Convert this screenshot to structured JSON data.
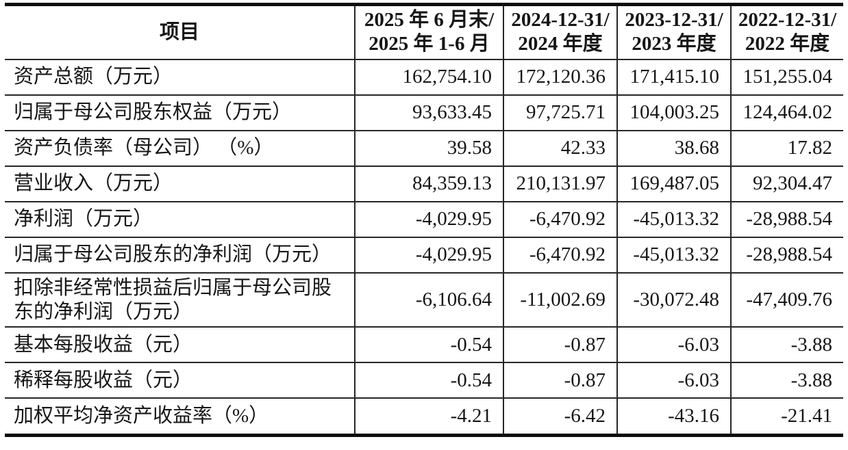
{
  "colors": {
    "background": "#ffffff",
    "text": "#161616",
    "grid_line": "#262626",
    "double_rule": "#0c0c0c"
  },
  "table": {
    "header": {
      "item_label": "项目",
      "columns": [
        {
          "line1": "2025 年 6 月末/",
          "line2": "2025 年 1-6 月"
        },
        {
          "line1": "2024-12-31/",
          "line2": "2024 年度"
        },
        {
          "line1": "2023-12-31/",
          "line2": "2023 年度"
        },
        {
          "line1": "2022-12-31/",
          "line2": "2022 年度"
        }
      ]
    },
    "rows": [
      {
        "label": "资产总额（万元）",
        "values": [
          "162,754.10",
          "172,120.36",
          "171,415.10",
          "151,255.04"
        ]
      },
      {
        "label": "归属于母公司股东权益（万元）",
        "values": [
          "93,633.45",
          "97,725.71",
          "104,003.25",
          "124,464.02"
        ]
      },
      {
        "label": "资产负债率（母公司） （%）",
        "values": [
          "39.58",
          "42.33",
          "38.68",
          "17.82"
        ]
      },
      {
        "label": "营业收入（万元）",
        "values": [
          "84,359.13",
          "210,131.97",
          "169,487.05",
          "92,304.47"
        ]
      },
      {
        "label": "净利润（万元）",
        "values": [
          "-4,029.95",
          "-6,470.92",
          "-45,013.32",
          "-28,988.54"
        ]
      },
      {
        "label": "归属于母公司股东的净利润（万元）",
        "values": [
          "-4,029.95",
          "-6,470.92",
          "-45,013.32",
          "-28,988.54"
        ]
      },
      {
        "label": "扣除非经常性损益后归属于母公司股东的净利润（万元）",
        "values": [
          "-6,106.64",
          "-11,002.69",
          "-30,072.48",
          "-47,409.76"
        ]
      },
      {
        "label": "基本每股收益（元）",
        "values": [
          "-0.54",
          "-0.87",
          "-6.03",
          "-3.88"
        ]
      },
      {
        "label": "稀释每股收益（元）",
        "values": [
          "-0.54",
          "-0.87",
          "-6.03",
          "-3.88"
        ]
      },
      {
        "label": "加权平均净资产收益率（%）",
        "values": [
          "-4.21",
          "-6.42",
          "-43.16",
          "-21.41"
        ]
      }
    ]
  }
}
